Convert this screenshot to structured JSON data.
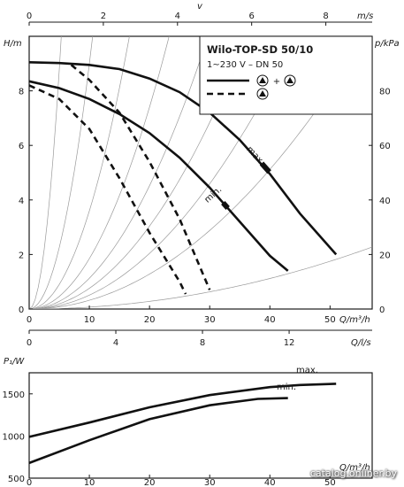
{
  "chart_data": [
    {
      "type": "line",
      "title": "Wilo-TOP-SD 50/10",
      "subtitle": "1~230 V – DN 50",
      "ylabel": "H/m",
      "y2label": "p/kPa",
      "xlabel": "Q/m³/h",
      "topxlabel": "v",
      "topxunit": "m/s",
      "midxlabel": "Q/l/s",
      "xlim": [
        0,
        57
      ],
      "ylim": [
        0,
        10
      ],
      "y2lim": [
        0,
        100
      ],
      "x_ticks": [
        0,
        10,
        20,
        30,
        40,
        50
      ],
      "y_ticks": [
        0,
        2,
        4,
        6,
        8
      ],
      "y2_ticks": [
        0,
        20,
        40,
        60,
        80
      ],
      "top_ticks": [
        0,
        2,
        4,
        6,
        8
      ],
      "top_max": 9.25,
      "mid_ticks": [
        0,
        4,
        8,
        12
      ],
      "mid_factor": 3.6,
      "grid": false,
      "legend_position": "top-right",
      "legend": {
        "solid_label": "± + ±",
        "dashed_label": "±"
      },
      "series": [
        {
          "name": "max.",
          "style": "solid",
          "x": [
            0,
            5,
            10,
            15,
            20,
            25,
            30,
            35,
            40,
            45,
            51
          ],
          "y": [
            9.05,
            9.02,
            8.95,
            8.8,
            8.45,
            7.95,
            7.2,
            6.2,
            4.95,
            3.5,
            2.0
          ]
        },
        {
          "name": "min.",
          "style": "solid",
          "x": [
            0,
            5,
            10,
            15,
            20,
            25,
            30,
            35,
            40,
            43
          ],
          "y": [
            8.35,
            8.1,
            7.7,
            7.15,
            6.45,
            5.55,
            4.45,
            3.2,
            1.95,
            1.4
          ]
        },
        {
          "name": "",
          "style": "dashed",
          "x": [
            7,
            10,
            15,
            20,
            25,
            30
          ],
          "y": [
            8.95,
            8.4,
            7.2,
            5.4,
            3.3,
            0.7
          ]
        },
        {
          "name": "",
          "style": "dashed",
          "x": [
            0,
            5,
            10,
            15,
            20,
            25,
            26
          ],
          "y": [
            8.2,
            7.7,
            6.6,
            4.8,
            2.8,
            1.0,
            0.55
          ]
        }
      ]
    },
    {
      "type": "line",
      "ylabel": "P₁/W",
      "xlabel": "Q/m³/h",
      "xlim": [
        0,
        57
      ],
      "ylim": [
        500,
        1750
      ],
      "x_ticks": [
        0,
        10,
        20,
        30,
        40,
        50
      ],
      "y_ticks": [
        500,
        1000,
        1500
      ],
      "grid": false,
      "series": [
        {
          "name": "max.",
          "x": [
            0,
            10,
            20,
            30,
            40,
            45,
            51
          ],
          "y": [
            990,
            1160,
            1340,
            1485,
            1580,
            1605,
            1620
          ]
        },
        {
          "name": "min.",
          "x": [
            0,
            10,
            20,
            30,
            38,
            43
          ],
          "y": [
            680,
            950,
            1200,
            1365,
            1440,
            1450
          ]
        }
      ]
    }
  ],
  "watermark": "catalog.onliner.by"
}
